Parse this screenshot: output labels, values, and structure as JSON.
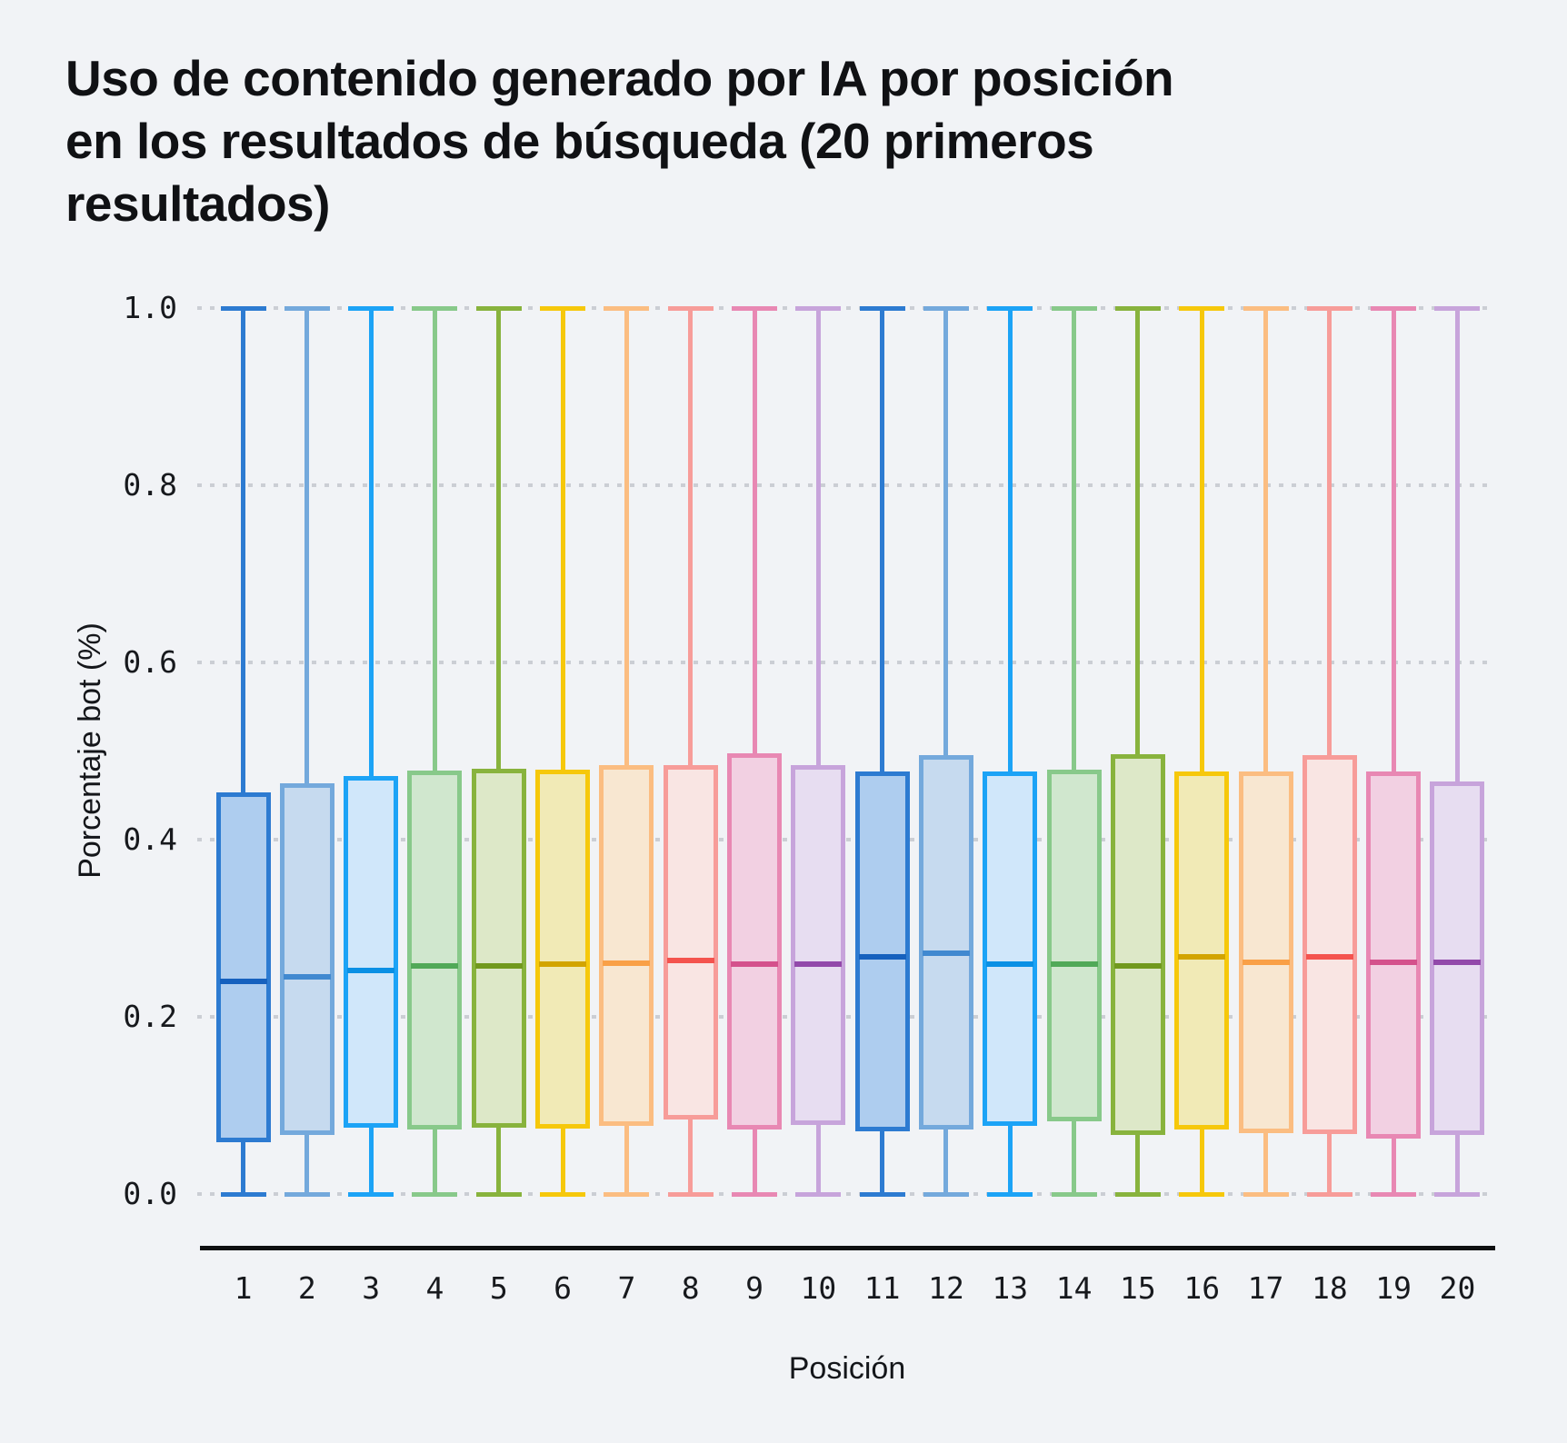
{
  "title_lines": [
    "Uso de contenido generado por IA por posición",
    "en los resultados de búsqueda (20 primeros",
    "resultados)"
  ],
  "chart_data": {
    "type": "boxplot",
    "title": "Uso de contenido generado por IA por posición en los resultados de búsqueda (20 primeros resultados)",
    "xlabel": "Posición",
    "ylabel": "Porcentaje bot (%)",
    "ylim": [
      0.0,
      1.0
    ],
    "yticks": [
      "0.0",
      "0.2",
      "0.4",
      "0.6",
      "0.8",
      "1.0"
    ],
    "grid": "horizontal dotted",
    "legend": "none",
    "colors": {
      "background": "#F1F3F6",
      "gridline": "#CBCED4",
      "axis_line": "#0e0f10",
      "text": "#14161a",
      "palette": [
        {
          "stroke": "#2D7BD1",
          "median": "#1661BE",
          "fill": "#AECDEF"
        },
        {
          "stroke": "#74A9DC",
          "median": "#4189D0",
          "fill": "#C6DAEF"
        },
        {
          "stroke": "#1CA3F6",
          "median": "#0A90E4",
          "fill": "#D0E7FA"
        },
        {
          "stroke": "#88C98A",
          "median": "#51A958",
          "fill": "#D0E7CE"
        },
        {
          "stroke": "#88B33D",
          "median": "#71991E",
          "fill": "#DDE8C8"
        },
        {
          "stroke": "#F6C80B",
          "median": "#D2A400",
          "fill": "#F1EAB6"
        },
        {
          "stroke": "#FBBD81",
          "median": "#F9A047",
          "fill": "#F8E7D1"
        },
        {
          "stroke": "#F79C99",
          "median": "#F4534E",
          "fill": "#F9E5E3"
        },
        {
          "stroke": "#E888B3",
          "median": "#D4518C",
          "fill": "#F2D0E2"
        },
        {
          "stroke": "#C7A4DB",
          "median": "#9249AA",
          "fill": "#E7DDF1"
        }
      ]
    },
    "categories": [
      "1",
      "2",
      "3",
      "4",
      "5",
      "6",
      "7",
      "8",
      "9",
      "10",
      "11",
      "12",
      "13",
      "14",
      "15",
      "16",
      "17",
      "18",
      "19",
      "20"
    ],
    "boxes": [
      {
        "position": "1",
        "whisker_low": 0.0,
        "q1": 0.058,
        "median": 0.24,
        "q3": 0.453,
        "whisker_high": 1.0,
        "color_index": 0
      },
      {
        "position": "2",
        "whisker_low": 0.0,
        "q1": 0.067,
        "median": 0.245,
        "q3": 0.464,
        "whisker_high": 1.0,
        "color_index": 1
      },
      {
        "position": "3",
        "whisker_low": 0.0,
        "q1": 0.075,
        "median": 0.252,
        "q3": 0.472,
        "whisker_high": 1.0,
        "color_index": 2
      },
      {
        "position": "4",
        "whisker_low": 0.0,
        "q1": 0.073,
        "median": 0.257,
        "q3": 0.478,
        "whisker_high": 1.0,
        "color_index": 3
      },
      {
        "position": "5",
        "whisker_low": 0.0,
        "q1": 0.075,
        "median": 0.257,
        "q3": 0.48,
        "whisker_high": 1.0,
        "color_index": 4
      },
      {
        "position": "6",
        "whisker_low": 0.0,
        "q1": 0.074,
        "median": 0.259,
        "q3": 0.479,
        "whisker_high": 1.0,
        "color_index": 5
      },
      {
        "position": "7",
        "whisker_low": 0.0,
        "q1": 0.077,
        "median": 0.261,
        "q3": 0.484,
        "whisker_high": 1.0,
        "color_index": 6
      },
      {
        "position": "8",
        "whisker_low": 0.0,
        "q1": 0.084,
        "median": 0.264,
        "q3": 0.484,
        "whisker_high": 1.0,
        "color_index": 7
      },
      {
        "position": "9",
        "whisker_low": 0.0,
        "q1": 0.073,
        "median": 0.259,
        "q3": 0.497,
        "whisker_high": 1.0,
        "color_index": 8
      },
      {
        "position": "10",
        "whisker_low": 0.0,
        "q1": 0.078,
        "median": 0.259,
        "q3": 0.484,
        "whisker_high": 1.0,
        "color_index": 9
      },
      {
        "position": "11",
        "whisker_low": 0.0,
        "q1": 0.071,
        "median": 0.268,
        "q3": 0.477,
        "whisker_high": 1.0,
        "color_index": 0
      },
      {
        "position": "12",
        "whisker_low": 0.0,
        "q1": 0.073,
        "median": 0.272,
        "q3": 0.495,
        "whisker_high": 1.0,
        "color_index": 1
      },
      {
        "position": "13",
        "whisker_low": 0.0,
        "q1": 0.077,
        "median": 0.259,
        "q3": 0.477,
        "whisker_high": 1.0,
        "color_index": 2
      },
      {
        "position": "14",
        "whisker_low": 0.0,
        "q1": 0.082,
        "median": 0.26,
        "q3": 0.479,
        "whisker_high": 1.0,
        "color_index": 3
      },
      {
        "position": "15",
        "whisker_low": 0.0,
        "q1": 0.067,
        "median": 0.257,
        "q3": 0.496,
        "whisker_high": 1.0,
        "color_index": 4
      },
      {
        "position": "16",
        "whisker_low": 0.0,
        "q1": 0.073,
        "median": 0.268,
        "q3": 0.477,
        "whisker_high": 1.0,
        "color_index": 5
      },
      {
        "position": "17",
        "whisker_low": 0.0,
        "q1": 0.069,
        "median": 0.262,
        "q3": 0.477,
        "whisker_high": 1.0,
        "color_index": 6
      },
      {
        "position": "18",
        "whisker_low": 0.0,
        "q1": 0.068,
        "median": 0.268,
        "q3": 0.495,
        "whisker_high": 1.0,
        "color_index": 7
      },
      {
        "position": "19",
        "whisker_low": 0.0,
        "q1": 0.063,
        "median": 0.262,
        "q3": 0.477,
        "whisker_high": 1.0,
        "color_index": 8
      },
      {
        "position": "20",
        "whisker_low": 0.0,
        "q1": 0.067,
        "median": 0.262,
        "q3": 0.466,
        "whisker_high": 1.0,
        "color_index": 9
      }
    ]
  }
}
